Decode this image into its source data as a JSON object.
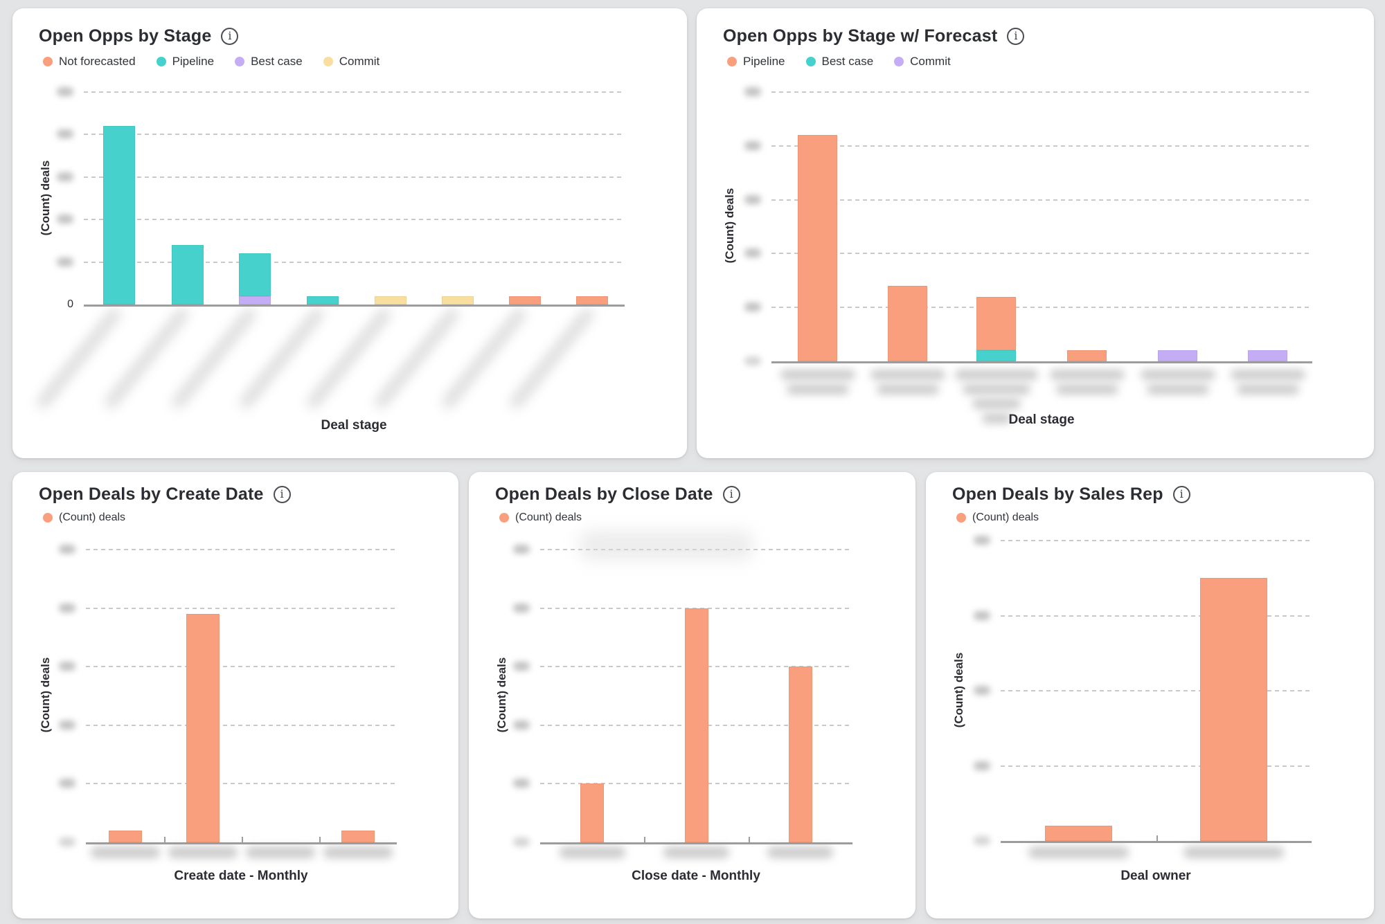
{
  "page": {
    "background": "#e3e4e6",
    "card_background": "#ffffff"
  },
  "icons": {
    "info_glyph": "i"
  },
  "cards": [
    {
      "title": "Open Opps by Stage",
      "visible_y_tick": "0",
      "legend": [
        {
          "label": "Not forecasted",
          "color": "#FA9F7D"
        },
        {
          "label": "Pipeline",
          "color": "#46D1CC"
        },
        {
          "label": "Best case",
          "color": "#C5ADF6"
        },
        {
          "label": "Commit",
          "color": "#F8DFA0"
        }
      ]
    },
    {
      "title": "Open Opps by Stage w/ Forecast",
      "legend": [
        {
          "label": "Pipeline",
          "color": "#FA9F7D"
        },
        {
          "label": "Best case",
          "color": "#46D1CC"
        },
        {
          "label": "Commit",
          "color": "#C5ADF6"
        }
      ]
    },
    {
      "title": "Open Deals by Create Date",
      "legend": [
        {
          "label": "(Count) deals",
          "color": "#FA9F7D"
        }
      ]
    },
    {
      "title": "Open Deals by Close Date",
      "legend": [
        {
          "label": "(Count) deals",
          "color": "#FA9F7D"
        }
      ]
    },
    {
      "title": "Open Deals by Sales Rep",
      "legend": [
        {
          "label": "(Count) deals",
          "color": "#FA9F7D"
        }
      ]
    }
  ],
  "chart_data": [
    {
      "type": "bar",
      "stacked": true,
      "title": "Open Opps by Stage",
      "xlabel": "Deal stage",
      "ylabel": "(Count) deals",
      "ylim": [
        0,
        25
      ],
      "y_step": 5,
      "grid": "dashed-horizontal",
      "legend_position": "top-left",
      "num_categories": 8,
      "categories": [
        "",
        "",
        "",
        "",
        "",
        "",
        "",
        ""
      ],
      "x_tick_labels": "blurred-diagonal-redacted",
      "y_tick_labels": "blurred-except-zero",
      "series": [
        {
          "name": "Not forecasted",
          "color": "#FA9F7D",
          "values": [
            0,
            0,
            0,
            0,
            0,
            0,
            1,
            1
          ]
        },
        {
          "name": "Pipeline",
          "color": "#46D1CC",
          "values": [
            21,
            7,
            5,
            1,
            0,
            0,
            0,
            0
          ]
        },
        {
          "name": "Best case",
          "color": "#C5ADF6",
          "values": [
            0,
            0,
            1,
            0,
            0,
            0,
            0,
            0
          ]
        },
        {
          "name": "Commit",
          "color": "#F8DFA0",
          "values": [
            0,
            0,
            0,
            0,
            1,
            1,
            0,
            0
          ]
        }
      ],
      "stack_order_bottom_first": [
        "Best case",
        "Pipeline",
        "Commit",
        "Not forecasted"
      ]
    },
    {
      "type": "bar",
      "stacked": true,
      "title": "Open Opps by Stage w/ Forecast",
      "xlabel": "Deal stage",
      "ylabel": "(Count) deals",
      "ylim": [
        0,
        25
      ],
      "y_step": 5,
      "grid": "dashed-horizontal",
      "legend_position": "top-left",
      "num_categories": 6,
      "categories": [
        "",
        "",
        "",
        "",
        "",
        ""
      ],
      "x_tick_labels": "blurred-two-line-redacted",
      "y_tick_labels": "blurred",
      "series": [
        {
          "name": "Pipeline",
          "color": "#FA9F7D",
          "values": [
            21,
            7,
            5,
            1,
            0,
            0
          ]
        },
        {
          "name": "Best case",
          "color": "#46D1CC",
          "values": [
            0,
            0,
            1,
            0,
            0,
            0
          ]
        },
        {
          "name": "Commit",
          "color": "#C5ADF6",
          "values": [
            0,
            0,
            0,
            0,
            1,
            1
          ]
        }
      ],
      "stack_order_bottom_first": [
        "Best case",
        "Pipeline",
        "Commit"
      ]
    },
    {
      "type": "bar",
      "stacked": false,
      "title": "Open Deals by Create Date",
      "xlabel": "Create date - Monthly",
      "ylabel": "(Count) deals",
      "ylim": [
        0,
        50
      ],
      "y_step": 10,
      "grid": "dashed-horizontal",
      "legend_position": "top-left",
      "num_categories": 4,
      "categories": [
        "",
        "",
        "",
        ""
      ],
      "x_tick_labels": "blurred-redacted",
      "y_tick_labels": "blurred",
      "series": [
        {
          "name": "(Count) deals",
          "color": "#FA9F7D",
          "values": [
            2,
            39,
            0,
            2
          ]
        }
      ]
    },
    {
      "type": "bar",
      "stacked": false,
      "title": "Open Deals by Close Date",
      "xlabel": "Close date - Monthly",
      "ylabel": "(Count) deals",
      "ylim": [
        0,
        25
      ],
      "y_step": 5,
      "grid": "dashed-horizontal",
      "legend_position": "top-left",
      "num_categories": 3,
      "categories": [
        "",
        "",
        ""
      ],
      "x_tick_labels": "blurred-redacted",
      "y_tick_labels": "blurred",
      "series": [
        {
          "name": "(Count) deals",
          "color": "#FA9F7D",
          "values": [
            5,
            20,
            15
          ]
        }
      ]
    },
    {
      "type": "bar",
      "stacked": false,
      "title": "Open Deals by Sales Rep",
      "xlabel": "Deal owner",
      "ylabel": "(Count) deals",
      "ylim": [
        0,
        40
      ],
      "y_step": 10,
      "grid": "dashed-horizontal",
      "legend_position": "top-left",
      "num_categories": 2,
      "categories": [
        "",
        ""
      ],
      "x_tick_labels": "blurred-redacted",
      "y_tick_labels": "blurred",
      "series": [
        {
          "name": "(Count) deals",
          "color": "#FA9F7D",
          "values": [
            2,
            35
          ]
        }
      ]
    }
  ]
}
